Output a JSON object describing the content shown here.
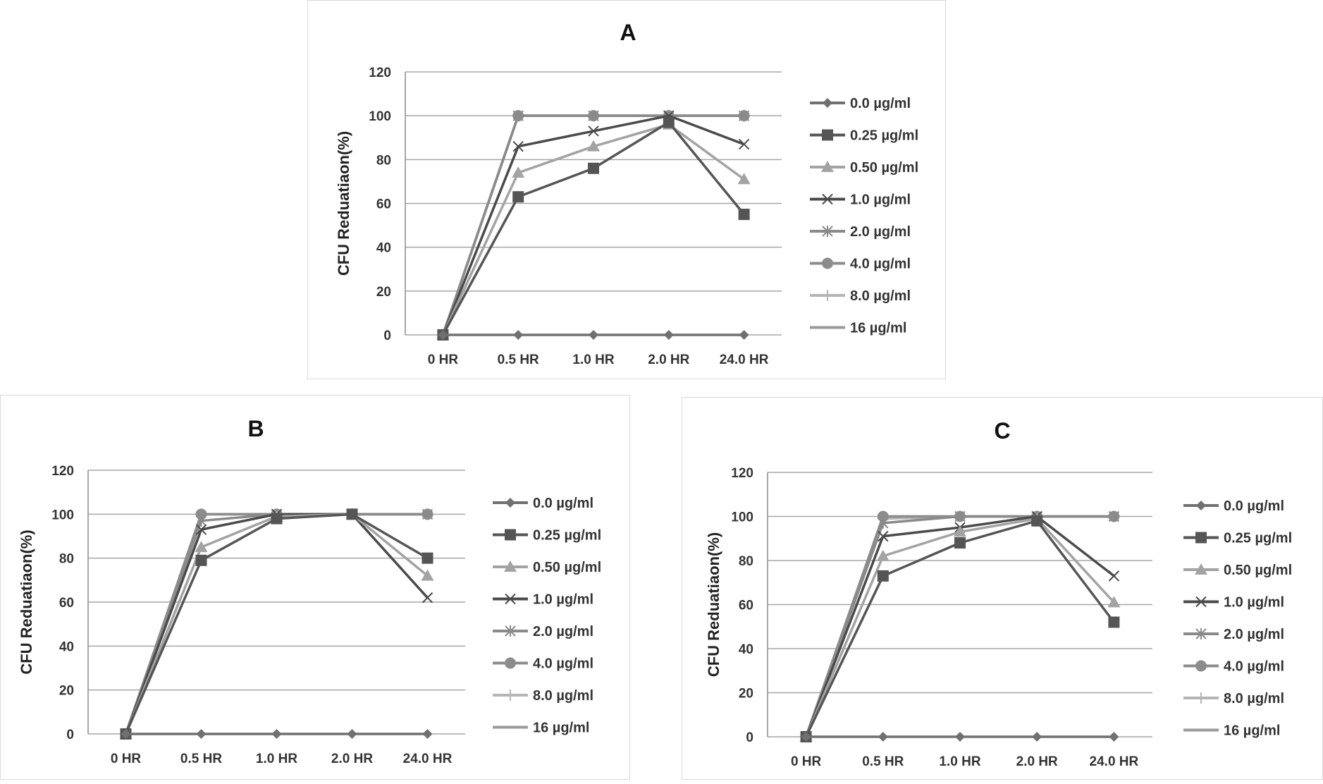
{
  "series_styles": [
    {
      "color": "#707070",
      "marker": "diamond"
    },
    {
      "color": "#555555",
      "marker": "square"
    },
    {
      "color": "#a3a3a3",
      "marker": "triangle"
    },
    {
      "color": "#4a4a4a",
      "marker": "x"
    },
    {
      "color": "#8a8a8a",
      "marker": "star"
    },
    {
      "color": "#8c8c8c",
      "marker": "circle"
    },
    {
      "color": "#b5b5b5",
      "marker": "plus"
    },
    {
      "color": "#9a9a9a",
      "marker": "none"
    }
  ],
  "chart_data": [
    {
      "type": "line",
      "title": "A",
      "xlabel": "",
      "ylabel": "CFU Reduatiaon(%)",
      "ylim": [
        0,
        120
      ],
      "yticks": [
        0,
        20,
        40,
        60,
        80,
        100,
        120
      ],
      "grid": true,
      "legend": "right",
      "categories": [
        "0 HR",
        "0.5 HR",
        "1.0 HR",
        "2.0 HR",
        "24.0 HR"
      ],
      "series": [
        {
          "name": "0.0 µg/ml",
          "values": [
            0,
            0,
            0,
            0,
            0
          ]
        },
        {
          "name": "0.25 µg/ml",
          "values": [
            0,
            63,
            76,
            97,
            55
          ]
        },
        {
          "name": "0.50 µg/ml",
          "values": [
            0,
            74,
            86,
            96,
            71
          ]
        },
        {
          "name": "1.0 µg/ml",
          "values": [
            0,
            86,
            93,
            100,
            87
          ]
        },
        {
          "name": "2.0 µg/ml",
          "values": [
            0,
            100,
            100,
            100,
            100
          ]
        },
        {
          "name": "4.0 µg/ml",
          "values": [
            0,
            100,
            100,
            100,
            100
          ]
        },
        {
          "name": "8.0 µg/ml",
          "values": [
            0,
            100,
            100,
            100,
            100
          ]
        },
        {
          "name": "16 µg/ml",
          "values": [
            0,
            100,
            100,
            100,
            100
          ]
        }
      ]
    },
    {
      "type": "line",
      "title": "B",
      "xlabel": "",
      "ylabel": "CFU Reduatiaon(%)",
      "ylim": [
        0,
        120
      ],
      "yticks": [
        0,
        20,
        40,
        60,
        80,
        100,
        120
      ],
      "grid": true,
      "legend": "right",
      "categories": [
        "0 HR",
        "0.5 HR",
        "1.0 HR",
        "2.0 HR",
        "24.0 HR"
      ],
      "series": [
        {
          "name": "0.0 µg/ml",
          "values": [
            0,
            0,
            0,
            0,
            0
          ]
        },
        {
          "name": "0.25 µg/ml",
          "values": [
            0,
            79,
            98,
            100,
            80
          ]
        },
        {
          "name": "0.50 µg/ml",
          "values": [
            0,
            85,
            99,
            100,
            72
          ]
        },
        {
          "name": "1.0 µg/ml",
          "values": [
            0,
            93,
            100,
            100,
            62
          ]
        },
        {
          "name": "2.0 µg/ml",
          "values": [
            0,
            97,
            100,
            100,
            100
          ]
        },
        {
          "name": "4.0 µg/ml",
          "values": [
            0,
            100,
            100,
            100,
            100
          ]
        },
        {
          "name": "8.0 µg/ml",
          "values": [
            0,
            100,
            100,
            100,
            100
          ]
        },
        {
          "name": "16 µg/ml",
          "values": [
            0,
            100,
            100,
            100,
            100
          ]
        }
      ]
    },
    {
      "type": "line",
      "title": "C",
      "xlabel": "",
      "ylabel": "CFU Reduatiaon(%)",
      "ylim": [
        0,
        120
      ],
      "yticks": [
        0,
        20,
        40,
        60,
        80,
        100,
        120
      ],
      "grid": true,
      "legend": "right",
      "categories": [
        "0 HR",
        "0.5 HR",
        "1.0 HR",
        "2.0 HR",
        "24.0 HR"
      ],
      "series": [
        {
          "name": "0.0 µg/ml",
          "values": [
            0,
            0,
            0,
            0,
            0
          ]
        },
        {
          "name": "0.25 µg/ml",
          "values": [
            0,
            73,
            88,
            98,
            52
          ]
        },
        {
          "name": "0.50 µg/ml",
          "values": [
            0,
            82,
            93,
            99,
            61
          ]
        },
        {
          "name": "1.0 µg/ml",
          "values": [
            0,
            91,
            95,
            100,
            73
          ]
        },
        {
          "name": "2.0 µg/ml",
          "values": [
            0,
            97,
            100,
            100,
            100
          ]
        },
        {
          "name": "4.0 µg/ml",
          "values": [
            0,
            100,
            100,
            100,
            100
          ]
        },
        {
          "name": "8.0 µg/ml",
          "values": [
            0,
            99,
            100,
            100,
            100
          ]
        },
        {
          "name": "16 µg/ml",
          "values": [
            0,
            100,
            100,
            100,
            100
          ]
        }
      ]
    }
  ]
}
